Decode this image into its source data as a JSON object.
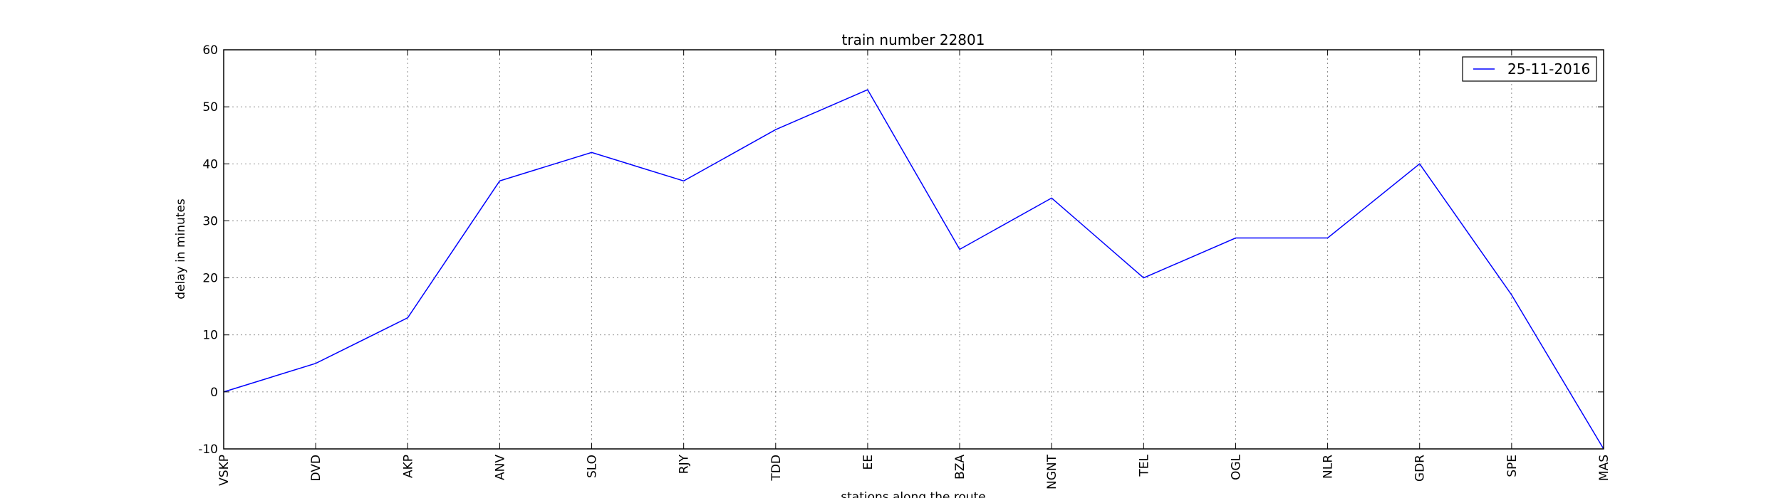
{
  "chart_data": {
    "type": "line",
    "title": "train number 22801",
    "xlabel": "stations along the route",
    "ylabel": "delay in minutes",
    "categories": [
      "VSKP",
      "DVD",
      "AKP",
      "ANV",
      "SLO",
      "RJY",
      "TDD",
      "EE",
      "BZA",
      "NGNT",
      "TEL",
      "OGL",
      "NLR",
      "GDR",
      "SPE",
      "MAS"
    ],
    "series": [
      {
        "name": "25-11-2016",
        "values": [
          0,
          5,
          13,
          37,
          42,
          37,
          46,
          53,
          25,
          34,
          20,
          27,
          27,
          40,
          17,
          -10
        ],
        "color": "#0000ff"
      }
    ],
    "ylim": [
      -10,
      60
    ],
    "yticks": [
      -10,
      0,
      10,
      20,
      30,
      40,
      50,
      60
    ],
    "grid": true,
    "legend_position": "top-right"
  }
}
